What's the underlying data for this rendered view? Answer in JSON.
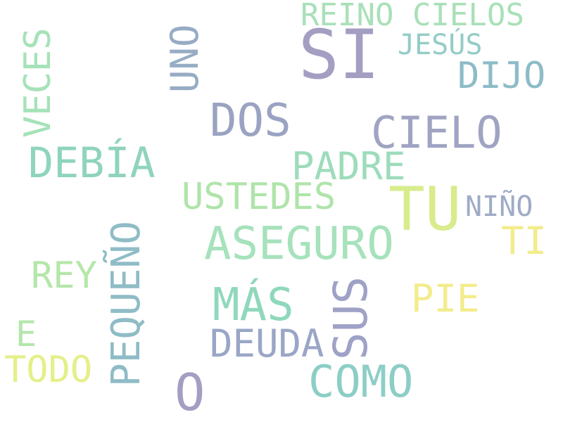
{
  "words": [
    {
      "id": "si",
      "text": "SI",
      "color": "#a39ec2"
    },
    {
      "id": "reino-cielos",
      "text": "REINO CIELOS",
      "color": "#a9e0b8"
    },
    {
      "id": "jesus",
      "text": "JESÚS",
      "color": "#93ccc6"
    },
    {
      "id": "dijo",
      "text": "DIJO",
      "color": "#8dbcc7"
    },
    {
      "id": "uno",
      "text": "UNO",
      "color": "#97acc4"
    },
    {
      "id": "veces",
      "text": "VECES",
      "color": "#a6e2b8"
    },
    {
      "id": "dos",
      "text": "DOS",
      "color": "#9aa3c2"
    },
    {
      "id": "cielo",
      "text": "CIELO",
      "color": "#a0a4c2"
    },
    {
      "id": "debia",
      "text": "DEBÍA",
      "color": "#8fd4bc"
    },
    {
      "id": "padre",
      "text": "PADRE",
      "color": "#9ddcbb"
    },
    {
      "id": "ustedes",
      "text": "USTEDES",
      "color": "#afe4aa"
    },
    {
      "id": "tu",
      "text": "TU",
      "color": "#d8ec8c"
    },
    {
      "id": "nino",
      "text": "NIÑO",
      "color": "#9fabc6"
    },
    {
      "id": "asseguro",
      "text": "ASEGURO",
      "color": "#a6e2bc"
    },
    {
      "id": "ti",
      "text": "TI",
      "color": "#f2ec8c"
    },
    {
      "id": "pequeno",
      "text": "PEQUEÑO",
      "color": "#8fbcc6"
    },
    {
      "id": "rey",
      "text": "REY",
      "color": "#b5e6a9"
    },
    {
      "id": "mas",
      "text": "MÁS",
      "color": "#8fd8bc"
    },
    {
      "id": "sus",
      "text": "SUS",
      "color": "#9fa2c6"
    },
    {
      "id": "pie",
      "text": "PIE",
      "color": "#f3ec8c"
    },
    {
      "id": "e",
      "text": "E",
      "color": "#b4e6ac"
    },
    {
      "id": "deuda",
      "text": "DEUDA",
      "color": "#9aa6c6"
    },
    {
      "id": "todo",
      "text": "TODO",
      "color": "#e5ef8a"
    },
    {
      "id": "como",
      "text": "COMO",
      "color": "#8ccec6"
    },
    {
      "id": "o",
      "text": "O",
      "color": "#a39ec2"
    }
  ]
}
